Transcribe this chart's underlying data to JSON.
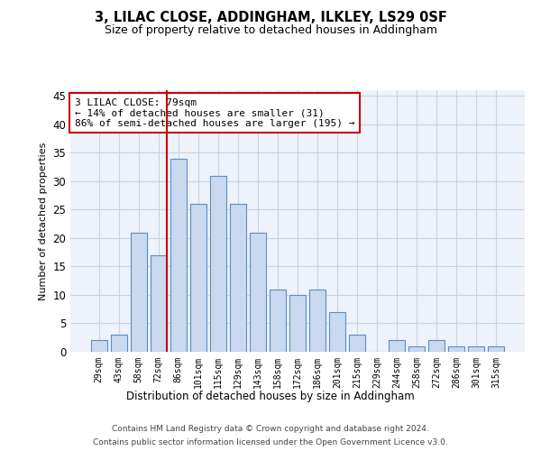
{
  "title": "3, LILAC CLOSE, ADDINGHAM, ILKLEY, LS29 0SF",
  "subtitle": "Size of property relative to detached houses in Addingham",
  "xlabel": "Distribution of detached houses by size in Addingham",
  "ylabel": "Number of detached properties",
  "categories": [
    "29sqm",
    "43sqm",
    "58sqm",
    "72sqm",
    "86sqm",
    "101sqm",
    "115sqm",
    "129sqm",
    "143sqm",
    "158sqm",
    "172sqm",
    "186sqm",
    "201sqm",
    "215sqm",
    "229sqm",
    "244sqm",
    "258sqm",
    "272sqm",
    "286sqm",
    "301sqm",
    "315sqm"
  ],
  "values": [
    2,
    3,
    21,
    17,
    34,
    26,
    31,
    26,
    21,
    11,
    10,
    11,
    7,
    3,
    0,
    2,
    1,
    2,
    1,
    1,
    1
  ],
  "bar_color": "#c8d9f0",
  "bar_edge_color": "#5b8ec4",
  "highlight_line_color": "#cc0000",
  "annotation_text": "3 LILAC CLOSE: 79sqm\n← 14% of detached houses are smaller (31)\n86% of semi-detached houses are larger (195) →",
  "annotation_box_color": "#ffffff",
  "annotation_box_edge_color": "#cc0000",
  "ylim": [
    0,
    46
  ],
  "yticks": [
    0,
    5,
    10,
    15,
    20,
    25,
    30,
    35,
    40,
    45
  ],
  "grid_color": "#c8d4e8",
  "background_color": "#eef2fa",
  "footer_line1": "Contains HM Land Registry data © Crown copyright and database right 2024.",
  "footer_line2": "Contains public sector information licensed under the Open Government Licence v3.0."
}
